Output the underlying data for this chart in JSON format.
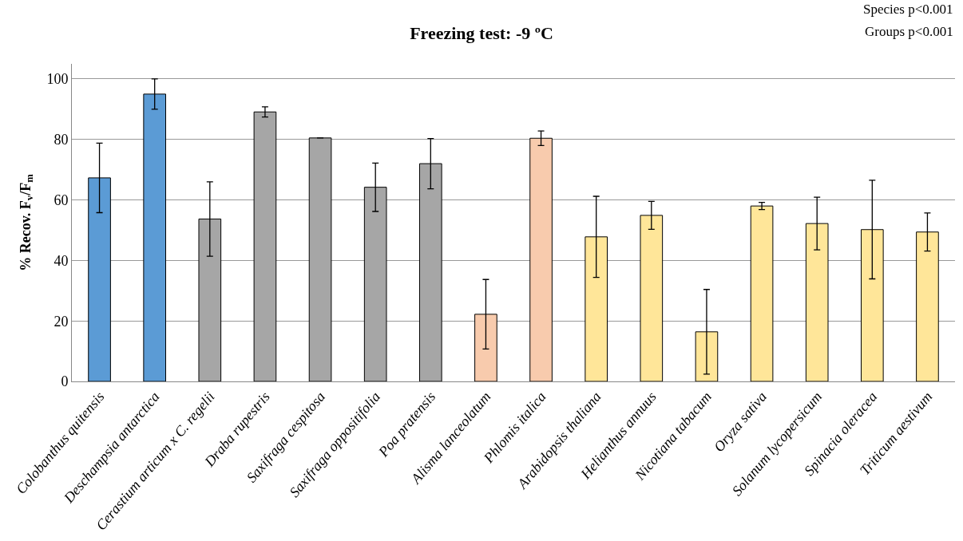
{
  "chart_data": {
    "type": "bar",
    "title": "Freezing test: -9 ºC",
    "ylabel": "% Recov. F$_{v}$/F$_{m}$",
    "categories": [
      "Colobanthus quitensis",
      "Deschampsia antarctica",
      "Cerastium articum x C. regelii",
      "Draba rupestris",
      "Saxifraga cespitosa",
      "Saxifraga oppositifolia",
      "Poa pratensis",
      "Alisma lanceolatum",
      "Phlomis italica",
      "Arabidopsis thaliana",
      "Helianthus annuus",
      "Nicotiana tabacum",
      "Oryza sativa",
      "Solanum lycopersicum",
      "Spinacia oleracea",
      "Triticum aestivum"
    ],
    "values": [
      67.3,
      95.0,
      53.7,
      89.1,
      80.5,
      64.2,
      72.0,
      22.2,
      80.4,
      47.8,
      54.9,
      16.4,
      58.0,
      52.2,
      50.2,
      49.4
    ],
    "errors": [
      11.5,
      5.0,
      12.3,
      1.7,
      null,
      8.0,
      8.3,
      11.5,
      2.4,
      13.4,
      4.6,
      14.0,
      1.2,
      8.7,
      16.3,
      6.3
    ],
    "colors": [
      "#5b9bd5",
      "#5b9bd5",
      "#a6a6a6",
      "#a6a6a6",
      "#a6a6a6",
      "#a6a6a6",
      "#a6a6a6",
      "#f8cbad",
      "#f8cbad",
      "#ffe699",
      "#ffe699",
      "#ffe699",
      "#ffe699",
      "#ffe699",
      "#ffe699",
      "#ffe699"
    ],
    "ylim": [
      0,
      105
    ],
    "yticks": [
      0,
      20,
      40,
      60,
      80,
      100
    ],
    "grid": "y",
    "legend": false,
    "annotations": [
      "Species p<0.001",
      "Groups p<0.001"
    ]
  }
}
